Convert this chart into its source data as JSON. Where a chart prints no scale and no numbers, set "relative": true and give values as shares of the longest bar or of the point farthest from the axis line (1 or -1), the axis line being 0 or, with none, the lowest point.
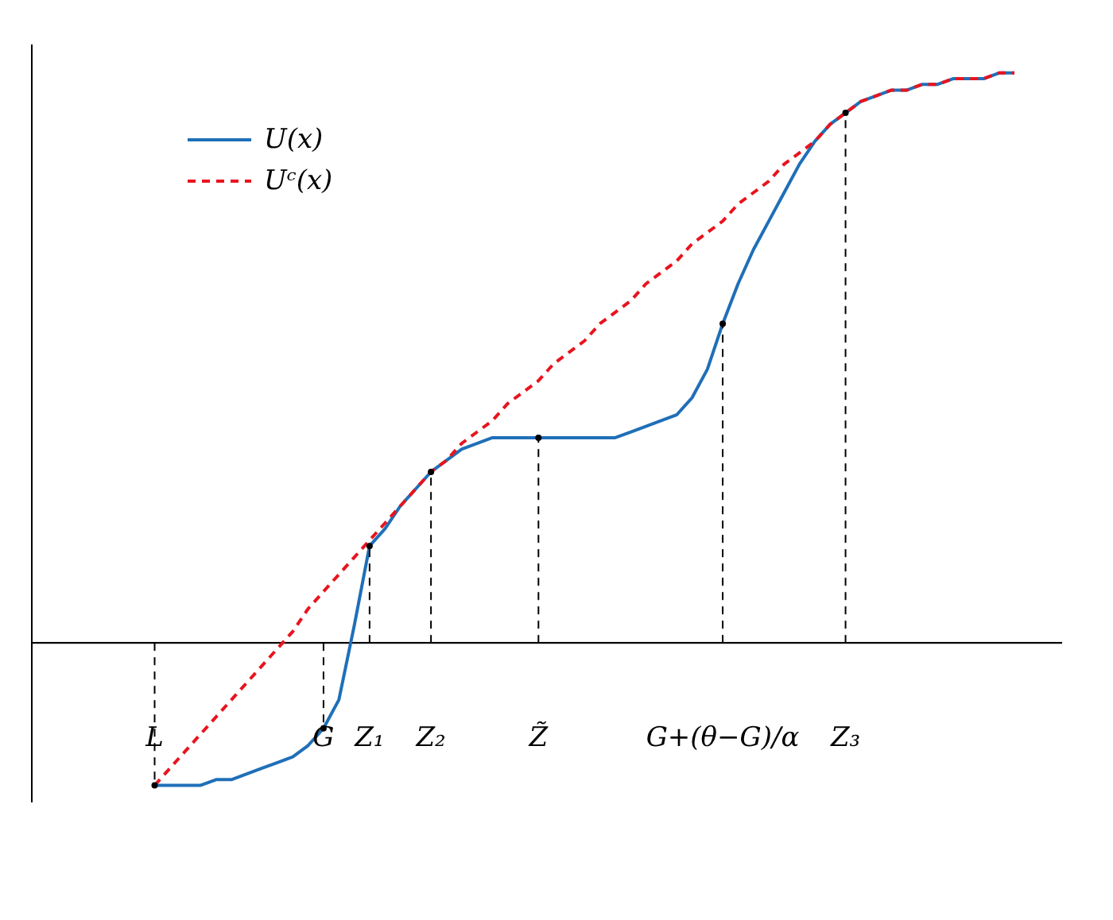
{
  "chart_data": {
    "type": "line",
    "relative": true,
    "legend": "top left",
    "categories": [
      null,
      null,
      null,
      null,
      null,
      null,
      null,
      null,
      "L",
      null,
      null,
      null,
      null,
      null,
      null,
      null,
      null,
      null,
      null,
      "G",
      null,
      null,
      "Z₁",
      null,
      null,
      null,
      "Z₂",
      null,
      null,
      null,
      null,
      null,
      null,
      "Z̃",
      null,
      null,
      null,
      null,
      null,
      null,
      null,
      null,
      null,
      null,
      null,
      "G+(θ−G)/α",
      null,
      null,
      null,
      null,
      null,
      null,
      null,
      "Z₃",
      null,
      null,
      null,
      null,
      null,
      null,
      null,
      null,
      null,
      null,
      null
    ],
    "series": [
      {
        "name": "U(x)",
        "color": "#1f6fb8",
        "line_style": "solid",
        "values": [
          null,
          null,
          null,
          null,
          null,
          null,
          null,
          null,
          -0.25,
          -0.25,
          -0.25,
          -0.25,
          -0.24,
          -0.24,
          -0.23,
          -0.22,
          -0.21,
          -0.2,
          -0.18,
          -0.15,
          -0.1,
          0.03,
          0.17,
          0.2,
          0.24,
          0.27,
          0.3,
          0.32,
          0.34,
          0.35,
          0.36,
          0.36,
          0.36,
          0.36,
          0.36,
          0.36,
          0.36,
          0.36,
          0.36,
          0.37,
          0.38,
          0.39,
          0.4,
          0.43,
          0.48,
          0.56,
          0.63,
          0.69,
          0.74,
          0.79,
          0.84,
          0.88,
          0.91,
          0.93,
          0.95,
          0.96,
          0.97,
          0.97,
          0.98,
          0.98,
          0.99,
          0.99,
          0.99,
          1,
          1
        ]
      },
      {
        "type": "lollipop",
        "color": "#000000",
        "line_style": "dashed",
        "marker": "circle",
        "values": [
          null,
          null,
          null,
          null,
          null,
          null,
          null,
          null,
          -0.25,
          null,
          null,
          null,
          null,
          null,
          null,
          null,
          null,
          null,
          null,
          -0.15,
          null,
          null,
          0.17,
          null,
          null,
          null,
          0.3,
          null,
          null,
          null,
          null,
          null,
          null,
          0.36,
          null,
          null,
          null,
          null,
          null,
          null,
          null,
          null,
          null,
          null,
          null,
          0.56,
          null,
          null,
          null,
          null,
          null,
          null,
          null,
          0.93,
          null,
          null,
          null,
          null,
          null,
          null,
          null,
          null,
          null,
          null,
          null
        ]
      },
      {
        "name": "Uᶜ(x)",
        "color": "#e8141e",
        "line_style": "dashed",
        "values": [
          null,
          null,
          null,
          null,
          null,
          null,
          null,
          null,
          -0.25,
          -0.22,
          -0.19,
          -0.16,
          -0.13,
          -0.1,
          -0.07,
          -0.04,
          -0.01,
          0.02,
          0.06,
          0.09,
          0.12,
          0.15,
          0.18,
          0.21,
          0.24,
          0.27,
          0.3,
          0.32,
          0.35,
          0.37,
          0.39,
          0.42,
          0.44,
          0.46,
          0.49,
          0.51,
          0.53,
          0.56,
          0.58,
          0.6,
          0.63,
          0.65,
          0.67,
          0.7,
          0.72,
          0.74,
          0.77,
          0.79,
          0.81,
          0.84,
          0.86,
          0.88,
          0.91,
          0.93,
          0.95,
          0.96,
          0.97,
          0.97,
          0.98,
          0.98,
          0.99,
          0.99,
          0.99,
          1,
          1
        ]
      }
    ]
  }
}
